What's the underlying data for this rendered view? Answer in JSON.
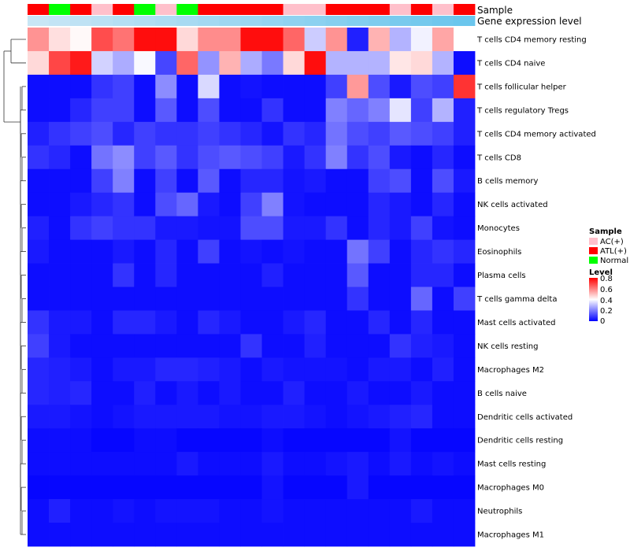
{
  "chart_data": {
    "type": "heatmap",
    "title": "",
    "row_labels": [
      "T cells CD4 memory resting",
      "T cells CD4 naive",
      "T cells follicular helper",
      "T cells regulatory  Tregs",
      "T cells CD4 memory activated",
      "T cells CD8",
      "B cells memory",
      "NK cells activated",
      "Monocytes",
      "Eosinophils",
      "Plasma cells",
      "T cells gamma delta",
      "Mast cells activated",
      "NK cells resting",
      "Macrophages M2",
      "B cells naive",
      "Dendritic cells activated",
      "Dendritic cells resting",
      "Mast cells resting",
      "Macrophages M0",
      "Neutrophils",
      "Macrophages M1"
    ],
    "column_annotations": [
      {
        "name": "Sample",
        "values": [
          "ATL(+)",
          "Normal",
          "ATL(+)",
          "AC(+)",
          "ATL(+)",
          "Normal",
          "AC(+)",
          "Normal",
          "ATL(+)",
          "ATL(+)",
          "ATL(+)",
          "ATL(+)",
          "AC(+)",
          "AC(+)",
          "ATL(+)",
          "ATL(+)",
          "ATL(+)",
          "AC(+)",
          "ATL(+)",
          "AC(+)",
          "ATL(+)"
        ]
      },
      {
        "name": "Gene expression level",
        "values": [
          0.06,
          0.1,
          0.14,
          0.18,
          0.22,
          0.26,
          0.3,
          0.34,
          0.38,
          0.42,
          0.46,
          0.5,
          0.54,
          0.58,
          0.62,
          0.66,
          0.7,
          0.74,
          0.78,
          0.82,
          0.86
        ]
      }
    ],
    "values": [
      [
        0.57,
        0.45,
        0.41,
        0.68,
        0.62,
        0.78,
        0.78,
        0.46,
        0.58,
        0.58,
        0.78,
        0.78,
        0.64,
        0.32,
        0.57,
        0.05,
        0.52,
        0.28,
        0.38,
        0.54,
        0.4
      ],
      [
        0.46,
        0.69,
        0.76,
        0.33,
        0.27,
        0.39,
        0.11,
        0.64,
        0.23,
        0.52,
        0.27,
        0.19,
        0.46,
        0.78,
        0.28,
        0.28,
        0.28,
        0.44,
        0.46,
        0.28,
        0.02
      ],
      [
        0.02,
        0.02,
        0.02,
        0.08,
        0.1,
        0.02,
        0.22,
        0.02,
        0.34,
        0.02,
        0.03,
        0.02,
        0.02,
        0.02,
        0.1,
        0.56,
        0.12,
        0.04,
        0.12,
        0.1,
        0.72
      ],
      [
        0.02,
        0.02,
        0.06,
        0.1,
        0.1,
        0.02,
        0.14,
        0.02,
        0.12,
        0.02,
        0.02,
        0.08,
        0.02,
        0.02,
        0.2,
        0.16,
        0.2,
        0.36,
        0.1,
        0.28,
        0.05
      ],
      [
        0.05,
        0.08,
        0.1,
        0.12,
        0.06,
        0.1,
        0.08,
        0.08,
        0.1,
        0.08,
        0.06,
        0.03,
        0.08,
        0.06,
        0.18,
        0.12,
        0.1,
        0.14,
        0.12,
        0.1,
        0.05
      ],
      [
        0.08,
        0.06,
        0.02,
        0.18,
        0.22,
        0.1,
        0.14,
        0.08,
        0.12,
        0.14,
        0.12,
        0.1,
        0.04,
        0.08,
        0.2,
        0.08,
        0.12,
        0.04,
        0.02,
        0.06,
        0.02
      ],
      [
        0.02,
        0.02,
        0.02,
        0.1,
        0.2,
        0.02,
        0.1,
        0.02,
        0.14,
        0.02,
        0.06,
        0.06,
        0.03,
        0.04,
        0.02,
        0.02,
        0.1,
        0.12,
        0.02,
        0.12,
        0.04
      ],
      [
        0.02,
        0.02,
        0.04,
        0.06,
        0.08,
        0.02,
        0.12,
        0.16,
        0.04,
        0.02,
        0.1,
        0.2,
        0.03,
        0.02,
        0.02,
        0.02,
        0.06,
        0.04,
        0.02,
        0.06,
        0.02
      ],
      [
        0.05,
        0.02,
        0.08,
        0.1,
        0.08,
        0.08,
        0.04,
        0.04,
        0.03,
        0.03,
        0.12,
        0.12,
        0.04,
        0.04,
        0.08,
        0.02,
        0.06,
        0.04,
        0.1,
        0.03,
        0.02
      ],
      [
        0.04,
        0.02,
        0.02,
        0.02,
        0.04,
        0.02,
        0.06,
        0.02,
        0.1,
        0.02,
        0.03,
        0.02,
        0.03,
        0.02,
        0.02,
        0.18,
        0.1,
        0.02,
        0.06,
        0.08,
        0.06
      ],
      [
        0.02,
        0.02,
        0.02,
        0.02,
        0.08,
        0.02,
        0.06,
        0.02,
        0.02,
        0.02,
        0.02,
        0.05,
        0.02,
        0.02,
        0.02,
        0.14,
        0.02,
        0.02,
        0.06,
        0.06,
        0.02
      ],
      [
        0.02,
        0.02,
        0.02,
        0.02,
        0.02,
        0.02,
        0.02,
        0.02,
        0.02,
        0.02,
        0.02,
        0.02,
        0.02,
        0.02,
        0.02,
        0.08,
        0.02,
        0.02,
        0.16,
        0.02,
        0.1
      ],
      [
        0.08,
        0.04,
        0.04,
        0.02,
        0.06,
        0.06,
        0.04,
        0.02,
        0.06,
        0.04,
        0.02,
        0.02,
        0.04,
        0.06,
        0.02,
        0.02,
        0.06,
        0.02,
        0.06,
        0.02,
        0.02
      ],
      [
        0.1,
        0.04,
        0.02,
        0.02,
        0.02,
        0.02,
        0.02,
        0.02,
        0.02,
        0.02,
        0.08,
        0.02,
        0.02,
        0.05,
        0.02,
        0.02,
        0.02,
        0.08,
        0.05,
        0.04,
        0.02
      ],
      [
        0.06,
        0.05,
        0.04,
        0.02,
        0.04,
        0.04,
        0.06,
        0.06,
        0.05,
        0.04,
        0.02,
        0.04,
        0.03,
        0.03,
        0.03,
        0.02,
        0.04,
        0.04,
        0.02,
        0.05,
        0.02
      ],
      [
        0.06,
        0.05,
        0.06,
        0.02,
        0.02,
        0.05,
        0.02,
        0.04,
        0.02,
        0.04,
        0.02,
        0.02,
        0.05,
        0.02,
        0.02,
        0.04,
        0.02,
        0.02,
        0.04,
        0.02,
        0.02
      ],
      [
        0.04,
        0.04,
        0.03,
        0.02,
        0.03,
        0.04,
        0.04,
        0.04,
        0.04,
        0.03,
        0.03,
        0.04,
        0.04,
        0.03,
        0.02,
        0.03,
        0.04,
        0.05,
        0.06,
        0.02,
        0.02
      ],
      [
        0.02,
        0.02,
        0.02,
        0.01,
        0.01,
        0.02,
        0.02,
        0.01,
        0.01,
        0.01,
        0.01,
        0.02,
        0.01,
        0.01,
        0.01,
        0.01,
        0.01,
        0.03,
        0.01,
        0.01,
        0.01
      ],
      [
        0.02,
        0.02,
        0.02,
        0.02,
        0.02,
        0.02,
        0.02,
        0.04,
        0.02,
        0.02,
        0.02,
        0.04,
        0.02,
        0.02,
        0.03,
        0.04,
        0.02,
        0.04,
        0.02,
        0.03,
        0.02
      ],
      [
        0.01,
        0.01,
        0.01,
        0.01,
        0.01,
        0.01,
        0.01,
        0.01,
        0.01,
        0.01,
        0.01,
        0.03,
        0.01,
        0.01,
        0.01,
        0.04,
        0.01,
        0.01,
        0.01,
        0.01,
        0.01
      ],
      [
        0.02,
        0.05,
        0.02,
        0.02,
        0.03,
        0.02,
        0.03,
        0.03,
        0.03,
        0.02,
        0.02,
        0.03,
        0.02,
        0.02,
        0.02,
        0.02,
        0.02,
        0.02,
        0.04,
        0.02,
        0.02
      ],
      [
        0.02,
        0.02,
        0.02,
        0.02,
        0.02,
        0.02,
        0.02,
        0.02,
        0.02,
        0.02,
        0.02,
        0.02,
        0.02,
        0.02,
        0.02,
        0.02,
        0.02,
        0.02,
        0.02,
        0.02,
        0.02
      ]
    ],
    "color_scale": {
      "name": "Level",
      "min": 0,
      "max": 0.8,
      "ticks": [
        "0.8",
        "0.6",
        "0.4",
        "0.2",
        "0"
      ],
      "low_color": "#0000ff",
      "mid_color": "#ffffff",
      "high_color": "#ff0000"
    },
    "legend": {
      "title": "Sample",
      "placement": "right",
      "entries": [
        {
          "label": "AC(+)",
          "color": "#ffc0cb"
        },
        {
          "label": "ATL(+)",
          "color": "#ff0000"
        },
        {
          "label": "Normal",
          "color": "#00ff00"
        }
      ]
    },
    "annotation_color_light": "#cfe8f6",
    "annotation_color_dark": "#5bc0eb",
    "dendrogram": "rows clustered (tree on left)"
  }
}
